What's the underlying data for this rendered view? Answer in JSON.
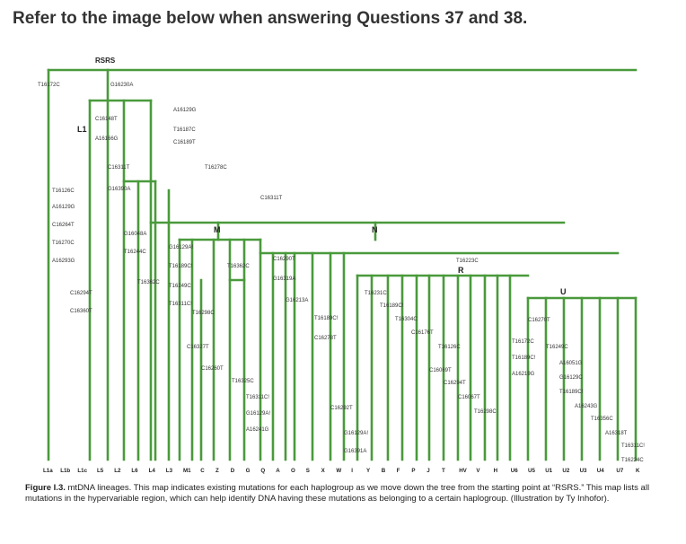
{
  "heading": "Refer to the image below when answering Questions 37 and 38.",
  "caption": {
    "label": "Figure I.3.",
    "text": "mtDNA lineages. This map indicates existing mutations for each haplogroup as we move down the tree from the starting point at “RSRS.” This map lists all mutations in the hypervariable region, which can help identify DNA having these mutations as belonging to a certain haplogroup. (Illustration by Ty Inhofor)."
  },
  "tree": {
    "root": "RSRS",
    "clade_labels": [
      "L1",
      "M",
      "N",
      "R",
      "U"
    ],
    "mutations": [
      "T16172C",
      "G16230A",
      "C16148T",
      "A16166G",
      "A16129G",
      "T16187C",
      "C16189T",
      "C16311T",
      "T16278C",
      "T16126C",
      "G16390A",
      "C16311T",
      "A16129G",
      "C16264T",
      "G16048A",
      "T16270C",
      "T16244C",
      "G16129A!",
      "A16293G",
      "T16189C!",
      "T16362C",
      "C16290T",
      "T16223C",
      "G16319A",
      "T16362C",
      "T16249C",
      "C16294T",
      "T16311C!",
      "T16298C",
      "G16213A",
      "T16231C",
      "T16189C!",
      "C16360T",
      "T16304C",
      "T16189C!",
      "C16270T",
      "C16278T",
      "C16176T",
      "T16172C",
      "C16327T",
      "T16126C",
      "T16249C",
      "T16189C!",
      "C16260T",
      "C16069T",
      "A16051G",
      "C16294T",
      "A16219G",
      "G16129C",
      "T16325C",
      "C16067T",
      "T16189C!",
      "T16311C!",
      "T16298C",
      "A16243G",
      "C16292T",
      "T16356C",
      "G16129A!",
      "A16241G",
      "G16129A!",
      "A16318T",
      "G16391A",
      "T16311C!",
      "T16224C"
    ],
    "haplogroups": [
      "L1a",
      "L1b",
      "L1c",
      "L5",
      "L2",
      "L6",
      "L4",
      "L3",
      "M1",
      "C",
      "Z",
      "D",
      "G",
      "Q",
      "A",
      "O",
      "S",
      "X",
      "W",
      "I",
      "Y",
      "B",
      "F",
      "P",
      "J",
      "T",
      "HV",
      "V",
      "H",
      "U6",
      "U5",
      "U1",
      "U2",
      "U3",
      "U4",
      "U7",
      "K"
    ]
  }
}
